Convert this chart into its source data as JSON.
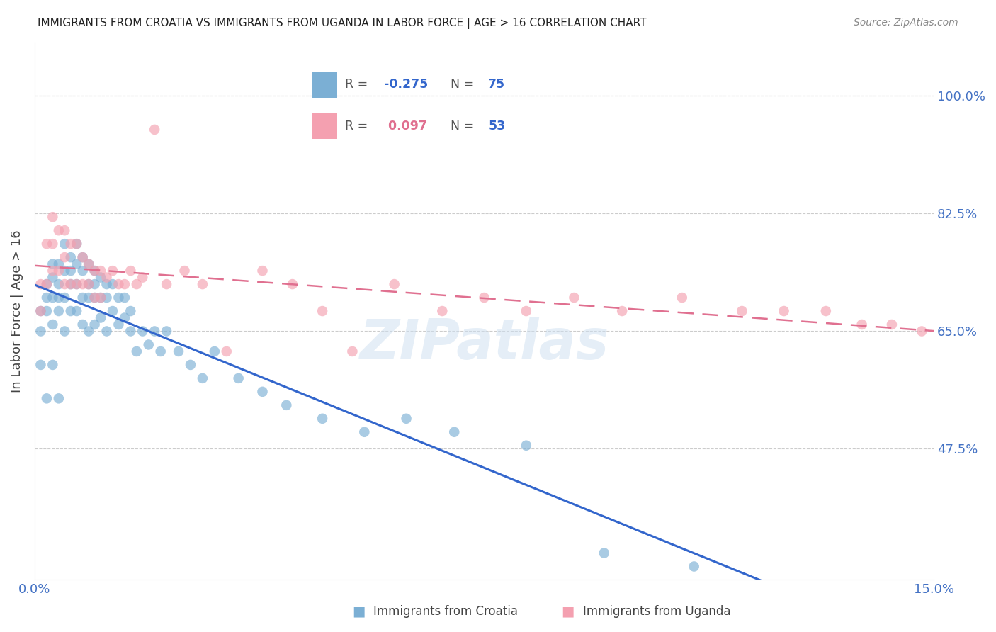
{
  "title": "IMMIGRANTS FROM CROATIA VS IMMIGRANTS FROM UGANDA IN LABOR FORCE | AGE > 16 CORRELATION CHART",
  "source": "Source: ZipAtlas.com",
  "ylabel_label": "In Labor Force | Age > 16",
  "xlim": [
    0.0,
    0.15
  ],
  "ylim": [
    0.28,
    1.08
  ],
  "croatia_color": "#7bafd4",
  "uganda_color": "#f4a0b0",
  "croatia_line_color": "#3366cc",
  "uganda_line_color": "#e07090",
  "croatia_R": -0.275,
  "croatia_N": 75,
  "uganda_R": 0.097,
  "uganda_N": 53,
  "background_color": "#ffffff",
  "grid_color": "#cccccc",
  "title_color": "#222222",
  "axis_label_color": "#4472c4",
  "ytick_vals": [
    0.475,
    0.65,
    0.825,
    1.0
  ],
  "ytick_labels": [
    "47.5%",
    "65.0%",
    "82.5%",
    "100.0%"
  ],
  "xtick_vals": [
    0.0,
    0.15
  ],
  "xtick_labels": [
    "0.0%",
    "15.0%"
  ],
  "watermark": "ZIPatlas",
  "croatia_scatter_x": [
    0.001,
    0.001,
    0.001,
    0.002,
    0.002,
    0.002,
    0.002,
    0.003,
    0.003,
    0.003,
    0.003,
    0.003,
    0.004,
    0.004,
    0.004,
    0.004,
    0.004,
    0.005,
    0.005,
    0.005,
    0.005,
    0.006,
    0.006,
    0.006,
    0.006,
    0.007,
    0.007,
    0.007,
    0.007,
    0.008,
    0.008,
    0.008,
    0.008,
    0.009,
    0.009,
    0.009,
    0.009,
    0.01,
    0.01,
    0.01,
    0.01,
    0.011,
    0.011,
    0.011,
    0.012,
    0.012,
    0.012,
    0.013,
    0.013,
    0.014,
    0.014,
    0.015,
    0.015,
    0.016,
    0.016,
    0.017,
    0.018,
    0.019,
    0.02,
    0.021,
    0.022,
    0.024,
    0.026,
    0.028,
    0.03,
    0.034,
    0.038,
    0.042,
    0.048,
    0.055,
    0.062,
    0.07,
    0.082,
    0.095,
    0.11
  ],
  "croatia_scatter_y": [
    0.68,
    0.65,
    0.6,
    0.72,
    0.7,
    0.68,
    0.55,
    0.75,
    0.73,
    0.7,
    0.66,
    0.6,
    0.75,
    0.72,
    0.7,
    0.68,
    0.55,
    0.78,
    0.74,
    0.7,
    0.65,
    0.76,
    0.74,
    0.72,
    0.68,
    0.78,
    0.75,
    0.72,
    0.68,
    0.76,
    0.74,
    0.7,
    0.66,
    0.75,
    0.72,
    0.7,
    0.65,
    0.74,
    0.72,
    0.7,
    0.66,
    0.73,
    0.7,
    0.67,
    0.72,
    0.7,
    0.65,
    0.72,
    0.68,
    0.7,
    0.66,
    0.7,
    0.67,
    0.68,
    0.65,
    0.62,
    0.65,
    0.63,
    0.65,
    0.62,
    0.65,
    0.62,
    0.6,
    0.58,
    0.62,
    0.58,
    0.56,
    0.54,
    0.52,
    0.5,
    0.52,
    0.5,
    0.48,
    0.32,
    0.3
  ],
  "uganda_scatter_x": [
    0.001,
    0.001,
    0.002,
    0.002,
    0.003,
    0.003,
    0.003,
    0.004,
    0.004,
    0.005,
    0.005,
    0.005,
    0.006,
    0.006,
    0.007,
    0.007,
    0.008,
    0.008,
    0.009,
    0.009,
    0.01,
    0.01,
    0.011,
    0.011,
    0.012,
    0.013,
    0.014,
    0.015,
    0.016,
    0.017,
    0.018,
    0.02,
    0.022,
    0.025,
    0.028,
    0.032,
    0.038,
    0.043,
    0.048,
    0.053,
    0.06,
    0.068,
    0.075,
    0.082,
    0.09,
    0.098,
    0.108,
    0.118,
    0.125,
    0.132,
    0.138,
    0.143,
    0.148
  ],
  "uganda_scatter_y": [
    0.72,
    0.68,
    0.78,
    0.72,
    0.82,
    0.78,
    0.74,
    0.8,
    0.74,
    0.8,
    0.76,
    0.72,
    0.78,
    0.72,
    0.78,
    0.72,
    0.76,
    0.72,
    0.75,
    0.72,
    0.74,
    0.7,
    0.74,
    0.7,
    0.73,
    0.74,
    0.72,
    0.72,
    0.74,
    0.72,
    0.73,
    0.95,
    0.72,
    0.74,
    0.72,
    0.62,
    0.74,
    0.72,
    0.68,
    0.62,
    0.72,
    0.68,
    0.7,
    0.68,
    0.7,
    0.68,
    0.7,
    0.68,
    0.68,
    0.68,
    0.66,
    0.66,
    0.65
  ]
}
